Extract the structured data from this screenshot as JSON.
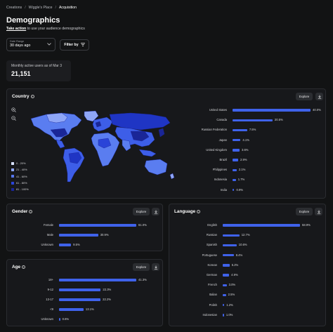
{
  "breadcrumbs": [
    "Creations",
    "Wiggle's Place",
    "Acquisition"
  ],
  "page": {
    "title": "Demographics",
    "subtitle_link": "Take action",
    "subtitle_rest": " to use your audience demographics"
  },
  "filters": {
    "date_range_label": "Date Range",
    "date_range_value": "30 days ago",
    "filter_by_label": "Filter by"
  },
  "stat": {
    "label": "Monthly active users as of Mar 3",
    "value": "21,151"
  },
  "buttons": {
    "explore": "Explore"
  },
  "country": {
    "title": "Country",
    "legend": [
      "0 - 20%",
      "21 - 40%",
      "41 - 60%",
      "61 - 80%",
      "81 - 100%"
    ],
    "legend_colors": [
      "#d8e2ff",
      "#8fa6f7",
      "#5676ee",
      "#2a44d8",
      "#1a2697"
    ],
    "rows": [
      {
        "name": "United States",
        "pct": "40.0%",
        "value": 40.0
      },
      {
        "name": "Canada",
        "pct": "20.5%",
        "value": 20.5
      },
      {
        "name": "Russian Federation",
        "pct": "7.5%",
        "value": 7.5
      },
      {
        "name": "Japan",
        "pct": "4.1%",
        "value": 4.1
      },
      {
        "name": "United Kingdom",
        "pct": "3.6%",
        "value": 3.6
      },
      {
        "name": "Brazil",
        "pct": "2.9%",
        "value": 2.9
      },
      {
        "name": "Philippines",
        "pct": "2.1%",
        "value": 2.1
      },
      {
        "name": "Indonesia",
        "pct": "1.7%",
        "value": 1.7
      },
      {
        "name": "India",
        "pct": "0.9%",
        "value": 0.9
      }
    ]
  },
  "gender": {
    "title": "Gender",
    "rows": [
      {
        "name": "Female",
        "pct": "61.0%",
        "value": 61.0
      },
      {
        "name": "Male",
        "pct": "30.9%",
        "value": 30.9
      },
      {
        "name": "Unknown",
        "pct": "9.5%",
        "value": 9.5
      }
    ]
  },
  "age": {
    "title": "Age",
    "rows": [
      {
        "name": "18+",
        "pct": "41.3%",
        "value": 41.3
      },
      {
        "name": "9-12",
        "pct": "22.3%",
        "value": 22.3
      },
      {
        "name": "13-17",
        "pct": "22.2%",
        "value": 22.2
      },
      {
        "name": "<9",
        "pct": "13.1%",
        "value": 13.1
      },
      {
        "name": "Unknown",
        "pct": "0.6%",
        "value": 0.6
      }
    ]
  },
  "language": {
    "title": "Language",
    "rows": [
      {
        "name": "English",
        "pct": "58.9%",
        "value": 58.9
      },
      {
        "name": "Russian",
        "pct": "12.7%",
        "value": 12.7
      },
      {
        "name": "Spanish",
        "pct": "10.6%",
        "value": 10.6
      },
      {
        "name": "Portuguese",
        "pct": "8.4%",
        "value": 8.4
      },
      {
        "name": "Korean",
        "pct": "5.2%",
        "value": 5.2
      },
      {
        "name": "German",
        "pct": "4.9%",
        "value": 4.9
      },
      {
        "name": "French",
        "pct": "3.0%",
        "value": 3.0
      },
      {
        "name": "Italian",
        "pct": "2.5%",
        "value": 2.5
      },
      {
        "name": "Polish",
        "pct": "1.2%",
        "value": 1.2
      },
      {
        "name": "Indonesian",
        "pct": "1.0%",
        "value": 1.0
      }
    ]
  },
  "colors": {
    "bar": "#3f62ea",
    "background": "#121314",
    "card": "#17181b"
  },
  "icons": [
    "info-icon",
    "zoom-in-icon",
    "zoom-out-icon",
    "download-icon",
    "filter-icon",
    "chevron-down-icon"
  ]
}
